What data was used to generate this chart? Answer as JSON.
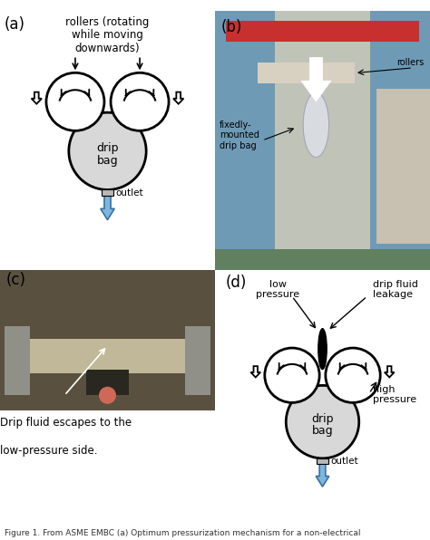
{
  "fig_width": 4.74,
  "fig_height": 5.96,
  "bg_color": "#ffffff",
  "panel_labels": [
    "(a)",
    "(b)",
    "(c)",
    "(d)"
  ],
  "panel_label_fontsize": 12,
  "panel_label_color": "#000000",
  "roller_color": "#ffffff",
  "roller_edge_color": "#000000",
  "bag_color": "#d8d8d8",
  "arrow_color": "#7daed4",
  "outlet_color": "#b0b0b0",
  "photo_b_avg": "#8a9ea8",
  "photo_c_avg": "#7a7060",
  "caption_text": "Figure 1. From ASME EMBC (a) Optimum pressurization mechanism for a non-electrical",
  "caption_fontsize": 6.5
}
